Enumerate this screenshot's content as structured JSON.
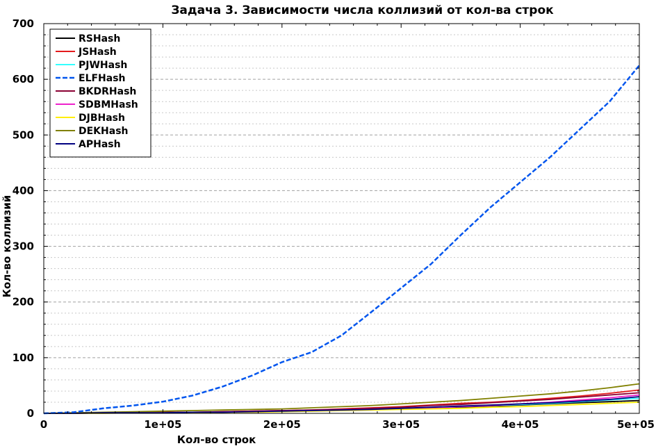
{
  "chart_data": {
    "type": "line",
    "title": "Задача 3. Зависимости числа коллизий от кол-ва строк",
    "xlabel": "Кол-во строк",
    "ylabel": "Кол-во коллизий",
    "xlim": [
      0,
      500000
    ],
    "ylim": [
      0,
      700
    ],
    "x_ticks": [
      0,
      100000,
      200000,
      300000,
      400000,
      500000
    ],
    "x_tick_labels": [
      "0",
      "1e+05",
      "2e+05",
      "3e+05",
      "4e+05",
      "5e+05"
    ],
    "y_ticks": [
      0,
      100,
      200,
      300,
      400,
      500,
      600,
      700
    ],
    "y_tick_labels": [
      "0",
      "100",
      "200",
      "300",
      "400",
      "500",
      "600",
      "700"
    ],
    "grid": "horizontal dashed, major and minor",
    "legend_position": "top-left",
    "x": [
      0,
      25000,
      50000,
      75000,
      100000,
      125000,
      150000,
      175000,
      200000,
      225000,
      250000,
      275000,
      300000,
      325000,
      350000,
      375000,
      400000,
      425000,
      450000,
      475000,
      500000
    ],
    "series": [
      {
        "name": "RSHash",
        "color": "#000000",
        "dash": "solid",
        "values": [
          0,
          0,
          1,
          1,
          1,
          2,
          2,
          3,
          4,
          5,
          6,
          7,
          8,
          9,
          11,
          13,
          15,
          17,
          19,
          21,
          23
        ]
      },
      {
        "name": "JSHash",
        "color": "#e31a1c",
        "dash": "solid",
        "values": [
          0,
          0,
          1,
          1,
          2,
          2,
          3,
          4,
          5,
          6,
          8,
          10,
          12,
          15,
          18,
          20,
          23,
          27,
          31,
          36,
          42
        ]
      },
      {
        "name": "PJWHash",
        "color": "#33ffff",
        "dash": "solid",
        "values": [
          0,
          0,
          1,
          1,
          1,
          2,
          2,
          3,
          4,
          5,
          6,
          7,
          9,
          10,
          12,
          14,
          16,
          18,
          21,
          24,
          27
        ]
      },
      {
        "name": "ELFHash",
        "color": "#0055ee",
        "dash": "dashed",
        "values": [
          0,
          2,
          9,
          14,
          21,
          32,
          48,
          68,
          92,
          110,
          140,
          182,
          225,
          268,
          320,
          370,
          415,
          460,
          510,
          560,
          625
        ]
      },
      {
        "name": "BKDRHash",
        "color": "#8b0033",
        "dash": "solid",
        "values": [
          0,
          0,
          1,
          1,
          2,
          2,
          3,
          4,
          5,
          6,
          7,
          9,
          11,
          14,
          16,
          19,
          22,
          25,
          29,
          33,
          37
        ]
      },
      {
        "name": "SDBMHash",
        "color": "#ee22cc",
        "dash": "solid",
        "values": [
          0,
          0,
          1,
          1,
          1,
          2,
          2,
          3,
          4,
          5,
          6,
          7,
          8,
          10,
          12,
          14,
          17,
          20,
          24,
          28,
          33
        ]
      },
      {
        "name": "DJBHash",
        "color": "#ffee00",
        "dash": "solid",
        "values": [
          0,
          0,
          0,
          1,
          1,
          1,
          2,
          2,
          3,
          4,
          5,
          6,
          7,
          8,
          9,
          11,
          12,
          14,
          16,
          18,
          20
        ]
      },
      {
        "name": "DEKHash",
        "color": "#808000",
        "dash": "solid",
        "values": [
          0,
          1,
          2,
          3,
          4,
          5,
          6,
          7,
          8,
          10,
          12,
          14,
          17,
          20,
          23,
          27,
          31,
          35,
          40,
          46,
          53
        ]
      },
      {
        "name": "APHash",
        "color": "#000080",
        "dash": "solid",
        "values": [
          0,
          0,
          1,
          1,
          1,
          2,
          2,
          3,
          4,
          5,
          6,
          7,
          9,
          11,
          13,
          15,
          17,
          19,
          22,
          25,
          30
        ]
      }
    ]
  }
}
